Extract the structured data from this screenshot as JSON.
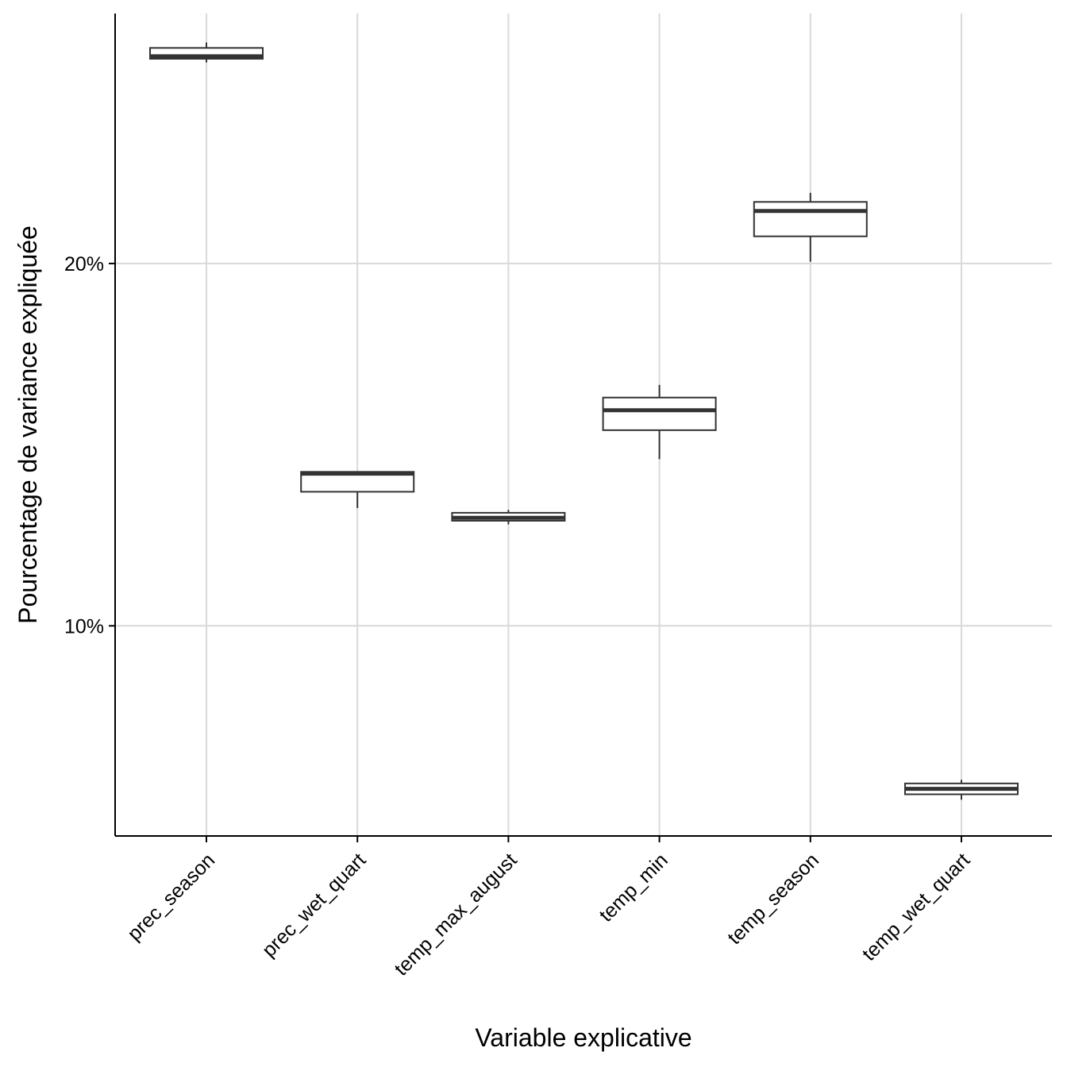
{
  "chart_data": {
    "type": "box",
    "xlabel": "Variable explicative",
    "ylabel": "Pourcentage de variance expliquée",
    "y_tick_values": [
      10,
      20
    ],
    "y_tick_labels": [
      "10%",
      "20%"
    ],
    "ylim": [
      4.2,
      26.9
    ],
    "grid": true,
    "categories": [
      "prec_season",
      "prec_wet_quart",
      "temp_max_august",
      "temp_min",
      "temp_season",
      "temp_wet_quart"
    ],
    "boxes": [
      {
        "category": "prec_season",
        "min": 25.55,
        "q1": 25.65,
        "median": 25.72,
        "q3": 25.95,
        "max": 26.1
      },
      {
        "category": "prec_wet_quart",
        "min": 13.25,
        "q1": 13.7,
        "median": 14.2,
        "q3": 14.25,
        "max": 14.25
      },
      {
        "category": "temp_max_august",
        "min": 12.8,
        "q1": 12.9,
        "median": 12.98,
        "q3": 13.12,
        "max": 13.2
      },
      {
        "category": "temp_min",
        "min": 14.6,
        "q1": 15.4,
        "median": 15.95,
        "q3": 16.3,
        "max": 16.65
      },
      {
        "category": "temp_season",
        "min": 20.05,
        "q1": 20.75,
        "median": 21.45,
        "q3": 21.7,
        "max": 21.95
      },
      {
        "category": "temp_wet_quart",
        "min": 5.2,
        "q1": 5.35,
        "median": 5.5,
        "q3": 5.65,
        "max": 5.75
      }
    ]
  },
  "colors": {
    "box_stroke": "#333333",
    "grid": "#d9d9d9",
    "axis": "#000000",
    "background": "#ffffff"
  }
}
